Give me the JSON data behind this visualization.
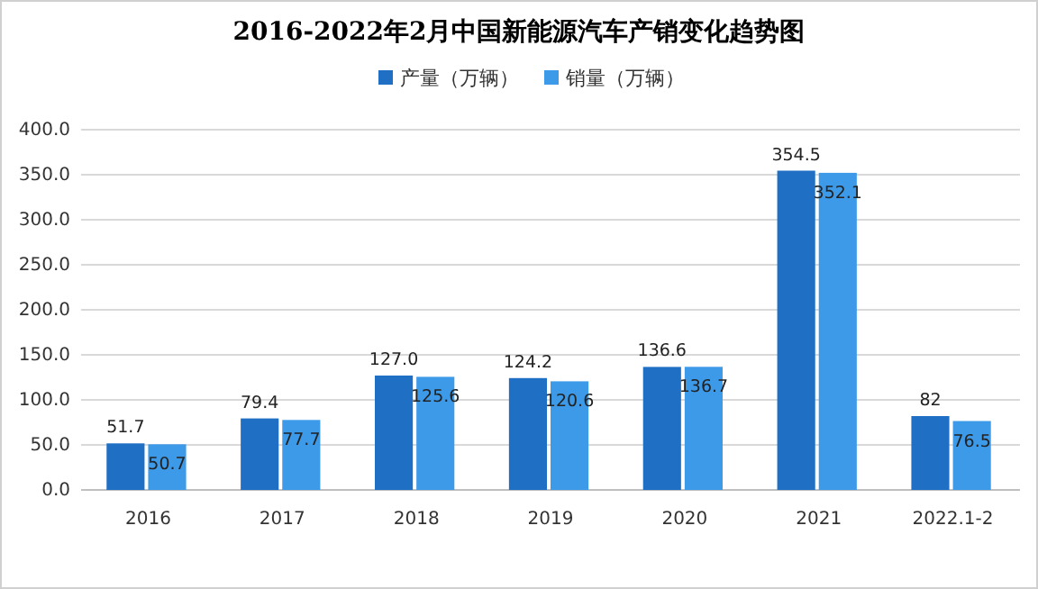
{
  "chart_data": {
    "type": "bar",
    "title": "2016-2022年2月中国新能源汽车产销变化趋势图",
    "categories": [
      "2016",
      "2017",
      "2018",
      "2019",
      "2020",
      "2021",
      "2022.1-2"
    ],
    "series": [
      {
        "name": "产量（万辆）",
        "color": "#1f6fc5",
        "values": [
          51.7,
          79.4,
          127.0,
          124.2,
          136.6,
          354.5,
          82
        ],
        "value_labels": [
          "51.7",
          "79.4",
          "127.0",
          "124.2",
          "136.6",
          "354.5",
          "82"
        ]
      },
      {
        "name": "销量（万辆）",
        "color": "#3d9ae8",
        "values": [
          50.7,
          77.7,
          125.6,
          120.6,
          136.7,
          352.1,
          76.5
        ],
        "value_labels": [
          "50.7",
          "77.7",
          "125.6",
          "120.6",
          "136.7",
          "352.1",
          "76.5"
        ]
      }
    ],
    "ylim": [
      0,
      400
    ],
    "yticks": [
      {
        "value": 0,
        "label": "0.0"
      },
      {
        "value": 50,
        "label": "50.0"
      },
      {
        "value": 100,
        "label": "100.0"
      },
      {
        "value": 150,
        "label": "150.0"
      },
      {
        "value": 200,
        "label": "200.0"
      },
      {
        "value": 250,
        "label": "250.0"
      },
      {
        "value": 300,
        "label": "300.0"
      },
      {
        "value": 350,
        "label": "350.0"
      },
      {
        "value": 400,
        "label": "400.0"
      }
    ],
    "grid": "y",
    "legend": "top"
  }
}
